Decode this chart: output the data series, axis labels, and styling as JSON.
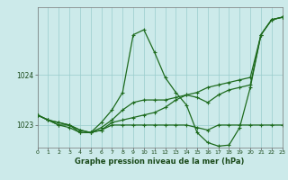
{
  "background_color": "#cceaea",
  "grid_color": "#99cccc",
  "line_colors": [
    "#1e6b1e",
    "#1e6b1e",
    "#1e6b1e",
    "#1e6b1e"
  ],
  "xlabel": "Graphe pression niveau de la mer (hPa)",
  "xlim": [
    0,
    23
  ],
  "ylim": [
    1022.55,
    1025.35
  ],
  "yticks": [
    1023,
    1024
  ],
  "xticks": [
    0,
    1,
    2,
    3,
    4,
    5,
    6,
    7,
    8,
    9,
    10,
    11,
    12,
    13,
    14,
    15,
    16,
    17,
    18,
    19,
    20,
    21,
    22,
    23
  ],
  "series": [
    {
      "x": [
        0,
        1,
        2,
        3,
        4,
        5,
        6,
        7,
        8,
        9,
        10,
        11,
        12,
        13,
        14,
        15,
        16,
        17,
        18,
        19,
        20,
        21,
        22,
        23
      ],
      "y": [
        1023.2,
        1023.1,
        1023.05,
        1023.0,
        1022.9,
        1022.85,
        1022.9,
        1023.0,
        1023.0,
        1023.0,
        1023.0,
        1023.0,
        1023.0,
        1023.0,
        1023.0,
        1022.95,
        1022.9,
        1023.0,
        1023.0,
        1023.0,
        1023.0,
        1023.0,
        1023.0,
        1023.0
      ]
    },
    {
      "x": [
        0,
        1,
        2,
        3,
        4,
        5,
        6,
        7,
        8,
        9,
        10,
        11,
        12,
        13,
        14,
        15,
        16,
        17,
        18,
        19,
        20,
        21,
        22,
        23
      ],
      "y": [
        1023.2,
        1023.1,
        1023.0,
        1022.95,
        1022.85,
        1022.85,
        1023.05,
        1023.3,
        1023.65,
        1024.8,
        1024.9,
        1024.45,
        1023.95,
        1023.65,
        1023.4,
        1022.85,
        1022.65,
        1022.58,
        1022.6,
        1022.95,
        1023.75,
        1024.8,
        1025.1,
        1025.15
      ]
    },
    {
      "x": [
        0,
        1,
        2,
        3,
        4,
        5,
        6,
        7,
        8,
        9,
        10,
        11,
        12,
        13,
        14,
        15,
        16,
        17,
        18,
        19,
        20,
        21,
        22,
        23
      ],
      "y": [
        1023.2,
        1023.1,
        1023.05,
        1023.0,
        1022.9,
        1022.85,
        1022.9,
        1023.05,
        1023.1,
        1023.15,
        1023.2,
        1023.25,
        1023.35,
        1023.5,
        1023.6,
        1023.65,
        1023.75,
        1023.8,
        1023.85,
        1023.9,
        1023.95,
        1024.8,
        1025.1,
        1025.15
      ]
    },
    {
      "x": [
        0,
        1,
        2,
        3,
        4,
        5,
        6,
        7,
        8,
        9,
        10,
        11,
        12,
        13,
        14,
        15,
        16,
        17,
        18,
        19,
        20,
        21,
        22,
        23
      ],
      "y": [
        1023.2,
        1023.1,
        1023.0,
        1023.0,
        1022.85,
        1022.85,
        1022.95,
        1023.1,
        1023.3,
        1023.45,
        1023.5,
        1023.5,
        1023.5,
        1023.55,
        1023.6,
        1023.55,
        1023.45,
        1023.6,
        1023.7,
        1023.75,
        1023.8,
        1024.8,
        1025.1,
        1025.15
      ]
    }
  ]
}
